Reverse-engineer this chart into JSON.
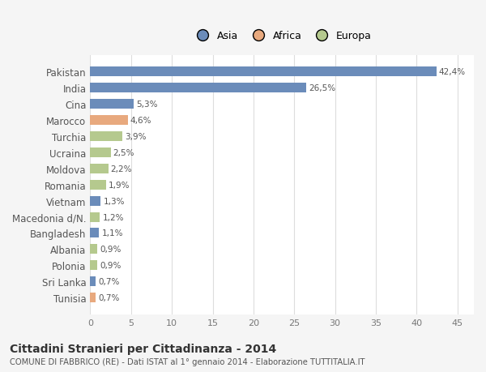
{
  "categories": [
    "Tunisia",
    "Sri Lanka",
    "Polonia",
    "Albania",
    "Bangladesh",
    "Macedonia d/N.",
    "Vietnam",
    "Romania",
    "Moldova",
    "Ucraina",
    "Turchia",
    "Marocco",
    "Cina",
    "India",
    "Pakistan"
  ],
  "values": [
    0.7,
    0.7,
    0.9,
    0.9,
    1.1,
    1.2,
    1.3,
    1.9,
    2.2,
    2.5,
    3.9,
    4.6,
    5.3,
    26.5,
    42.4
  ],
  "labels": [
    "0,7%",
    "0,7%",
    "0,9%",
    "0,9%",
    "1,1%",
    "1,2%",
    "1,3%",
    "1,9%",
    "2,2%",
    "2,5%",
    "3,9%",
    "4,6%",
    "5,3%",
    "26,5%",
    "42,4%"
  ],
  "continent": [
    "Africa",
    "Asia",
    "Europa",
    "Europa",
    "Asia",
    "Europa",
    "Asia",
    "Europa",
    "Europa",
    "Europa",
    "Europa",
    "Africa",
    "Asia",
    "Asia",
    "Asia"
  ],
  "colors": {
    "Asia": "#6b8cba",
    "Africa": "#e8a97e",
    "Europa": "#b5c98e"
  },
  "legend_items": [
    "Asia",
    "Africa",
    "Europa"
  ],
  "legend_colors": [
    "#6b8cba",
    "#e8a97e",
    "#b5c98e"
  ],
  "xlim": [
    0,
    47
  ],
  "xticks": [
    0,
    5,
    10,
    15,
    20,
    25,
    30,
    35,
    40,
    45
  ],
  "title": "Cittadini Stranieri per Cittadinanza - 2014",
  "subtitle": "COMUNE DI FABBRICO (RE) - Dati ISTAT al 1° gennaio 2014 - Elaborazione TUTTITALIA.IT",
  "background_color": "#f5f5f5",
  "plot_background": "#ffffff",
  "grid_color": "#dddddd"
}
